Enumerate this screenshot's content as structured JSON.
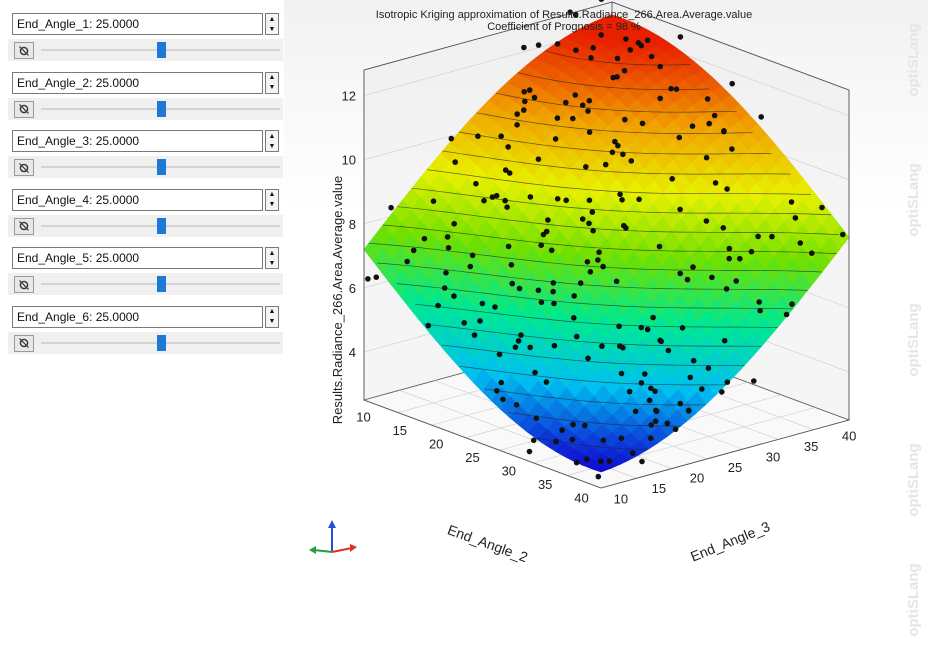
{
  "parameters": [
    {
      "label": "End_Angle_1: 25.0000",
      "level": 0.5
    },
    {
      "label": "End_Angle_2: 25.0000",
      "level": 0.5
    },
    {
      "label": "End_Angle_3: 25.0000",
      "level": 0.5
    },
    {
      "label": "End_Angle_4: 25.0000",
      "level": 0.5
    },
    {
      "label": "End_Angle_5: 25.0000",
      "level": 0.5
    },
    {
      "label": "End_Angle_6: 25.0000",
      "level": 0.5
    }
  ],
  "plot": {
    "title": "Isotropic Kriging approximation of Results.Radiance_266.Area.Average.value",
    "subtitle": "Coefficient of Prognosis = 98 %",
    "zlabel": "Results.Radiance_266.Area.Average.value",
    "xlabel": "End_Angle_2",
    "ylabel": "End_Angle_3",
    "x_ticks": [
      "10",
      "15",
      "20",
      "25",
      "30",
      "35",
      "40"
    ],
    "y_ticks": [
      "10",
      "15",
      "20",
      "25",
      "30",
      "35",
      "40"
    ],
    "z_ticks": [
      "4",
      "6",
      "8",
      "10",
      "12"
    ],
    "colormap": [
      "#1010d0",
      "#00c0f0",
      "#00e890",
      "#70e000",
      "#e8f000",
      "#f0a000",
      "#e82000"
    ]
  },
  "watermark": "optiSLang",
  "icons": {
    "reset": "reset-icon",
    "up": "spin-up-arrow",
    "down": "spin-down-arrow",
    "axes": "axes-orientation-icon"
  }
}
